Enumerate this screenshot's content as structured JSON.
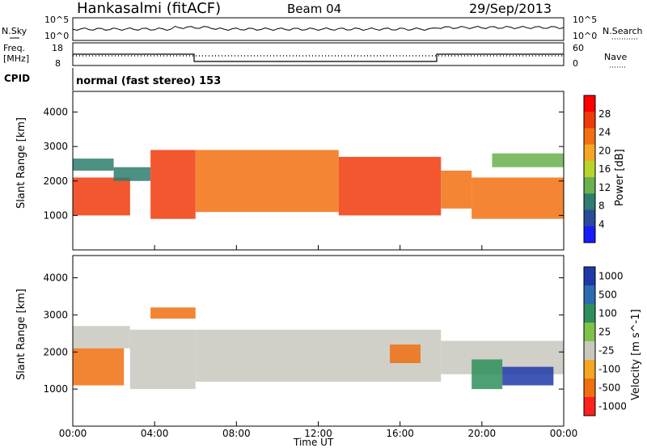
{
  "header": {
    "station": "Hankasalmi (fitACF)",
    "beam": "Beam 04",
    "date": "29/Sep/2013"
  },
  "nsky_panel": {
    "left_label": "N.Sky",
    "right_label": "N.Search",
    "left_ticks": [
      "10^5",
      "10^0"
    ],
    "right_ticks": [
      "10^5",
      "10^0"
    ]
  },
  "freq_panel": {
    "left_label_line1": "Freq.",
    "left_label_line2": "[MHz]",
    "left_ticks": [
      "18",
      "8"
    ],
    "right_label": "Nave",
    "right_ticks": [
      "60",
      "0"
    ]
  },
  "cpid": {
    "label": "CPID",
    "text": "normal (fast stereo) 153"
  },
  "colors": {
    "power_scale": [
      "#1a1aff",
      "#2a4a9a",
      "#2e7d6e",
      "#6ab04c",
      "#b8d62a",
      "#f5a623",
      "#f27012",
      "#f03a0a",
      "#ff0000"
    ],
    "velocity_scale": [
      "#1f3aa8",
      "#2e6bb0",
      "#2e8f5a",
      "#7fc24a",
      "#c8c8c0",
      "#f5a623",
      "#f07010",
      "#ff2020"
    ],
    "axis": "#000000"
  },
  "chart_data": [
    {
      "type": "heatmap",
      "title": "",
      "ylabel": "Slant Range [km]",
      "ylim": [
        0,
        4600
      ],
      "yticks": [
        1000,
        2000,
        3000,
        4000
      ],
      "xlim": [
        0,
        24
      ],
      "colorbar_label": "Power [dB]",
      "colorbar_ticks": [
        "4",
        "8",
        "12",
        "16",
        "20",
        "24",
        "28"
      ],
      "colorbar_range": [
        0,
        32
      ],
      "regions": [
        {
          "t0": 0.0,
          "t1": 2.0,
          "r0": 2300,
          "r1": 2650,
          "value": 8
        },
        {
          "t0": 0.0,
          "t1": 2.8,
          "r0": 1000,
          "r1": 2100,
          "value": 26
        },
        {
          "t0": 2.0,
          "t1": 3.8,
          "r0": 2000,
          "r1": 2400,
          "value": 6
        },
        {
          "t0": 3.8,
          "t1": 6.0,
          "r0": 900,
          "r1": 2900,
          "value": 27
        },
        {
          "t0": 6.0,
          "t1": 13.0,
          "r0": 1100,
          "r1": 2900,
          "value": 25
        },
        {
          "t0": 13.0,
          "t1": 18.0,
          "r0": 1000,
          "r1": 2700,
          "value": 26
        },
        {
          "t0": 18.0,
          "t1": 19.5,
          "r0": 1200,
          "r1": 2300,
          "value": 24
        },
        {
          "t0": 19.5,
          "t1": 24.0,
          "r0": 900,
          "r1": 2100,
          "value": 22
        },
        {
          "t0": 20.5,
          "t1": 24.0,
          "r0": 2400,
          "r1": 2800,
          "value": 10
        }
      ]
    },
    {
      "type": "heatmap",
      "title": "",
      "ylabel": "Slant Range [km]",
      "xlabel": "Time UT",
      "ylim": [
        0,
        4600
      ],
      "yticks": [
        1000,
        2000,
        3000,
        4000
      ],
      "xlim": [
        0,
        24
      ],
      "xticks": [
        "00:00",
        "04:00",
        "08:00",
        "12:00",
        "16:00",
        "20:00",
        "00:00"
      ],
      "colorbar_label": "Velocity [m s^-1]",
      "colorbar_ticks": [
        "1000",
        "500",
        "100",
        "25",
        "-25",
        "-100",
        "-500",
        "-1000"
      ],
      "regions": [
        {
          "t0": 0.0,
          "t1": 2.8,
          "r0": 2100,
          "r1": 2700,
          "value": 0
        },
        {
          "t0": 0.0,
          "t1": 2.5,
          "r0": 1100,
          "r1": 2100,
          "value": -300
        },
        {
          "t0": 2.8,
          "t1": 6.0,
          "r0": 1000,
          "r1": 2600,
          "value": 0
        },
        {
          "t0": 3.8,
          "t1": 6.0,
          "r0": 2900,
          "r1": 3200,
          "value": -400
        },
        {
          "t0": 6.0,
          "t1": 18.0,
          "r0": 1200,
          "r1": 2600,
          "value": 0
        },
        {
          "t0": 15.5,
          "t1": 17.0,
          "r0": 1700,
          "r1": 2200,
          "value": -300
        },
        {
          "t0": 18.0,
          "t1": 24.0,
          "r0": 1400,
          "r1": 2300,
          "value": 0
        },
        {
          "t0": 19.5,
          "t1": 21.0,
          "r0": 1000,
          "r1": 1800,
          "value": 400
        },
        {
          "t0": 21.0,
          "t1": 23.5,
          "r0": 1100,
          "r1": 1600,
          "value": 600
        }
      ]
    }
  ]
}
